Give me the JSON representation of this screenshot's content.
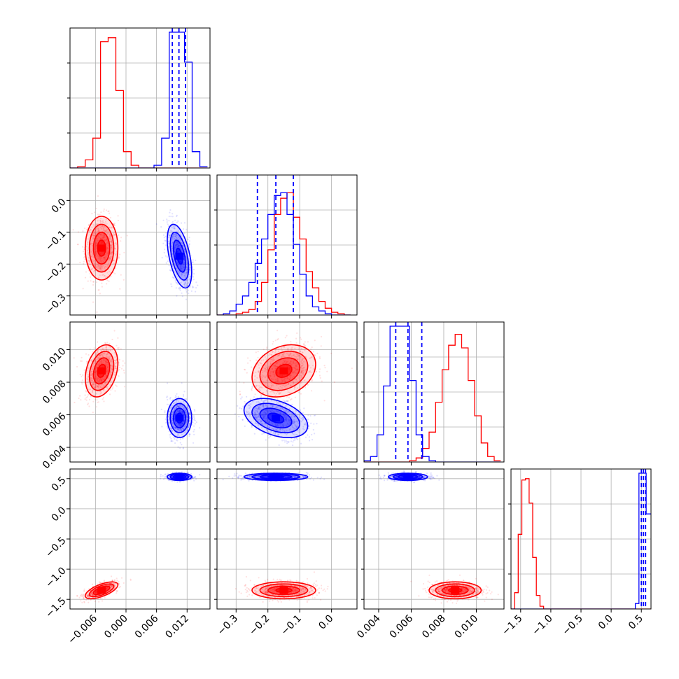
{
  "colors": {
    "series_red": "#ff0000",
    "series_blue": "#0000ff",
    "grid": "#b0b0b0",
    "frame": "#000000"
  },
  "chart_data": {
    "type": "corner",
    "grid": true,
    "parameters": [
      {
        "range": [
          -0.011,
          0.0165
        ],
        "ticks": [
          -0.006,
          0.0,
          0.006,
          0.012
        ],
        "tick_labels": [
          "−0.006",
          "0.000",
          "0.006",
          "0.012"
        ]
      },
      {
        "range": [
          -0.36,
          0.08
        ],
        "ticks": [
          -0.3,
          -0.2,
          -0.1,
          0.0
        ],
        "tick_labels": [
          "−0.3",
          "−0.2",
          "−0.1",
          "0.0"
        ]
      },
      {
        "range": [
          0.0031,
          0.0117
        ],
        "ticks": [
          0.004,
          0.006,
          0.008,
          0.01
        ],
        "tick_labels": [
          "0.004",
          "0.006",
          "0.008",
          "0.010"
        ]
      },
      {
        "range": [
          -1.66,
          0.66
        ],
        "ticks": [
          -1.5,
          -1.0,
          -0.5,
          0.0,
          0.5
        ],
        "tick_labels": [
          "−1.5",
          "−1.0",
          "−0.5",
          "0.0",
          "0.5"
        ]
      }
    ],
    "series": [
      {
        "color": "#ff0000",
        "mean": [
          -0.0048,
          -0.15,
          0.0087,
          -1.35
        ],
        "sd": [
          0.0016,
          0.05,
          0.0008,
          0.07
        ],
        "corr": [
          [
            0,
            1,
            0.0
          ],
          [
            0,
            2,
            0.3
          ],
          [
            0,
            3,
            0.65
          ],
          [
            1,
            2,
            0.25
          ],
          [
            1,
            3,
            0.0
          ],
          [
            2,
            3,
            0.0
          ]
        ]
      },
      {
        "color": "#0000ff",
        "mean": [
          0.0105,
          -0.175,
          0.0058,
          0.53
        ],
        "sd": [
          0.0012,
          0.05,
          0.0006,
          0.03
        ],
        "corr": [
          [
            0,
            1,
            -0.5
          ],
          [
            0,
            2,
            0.0
          ],
          [
            0,
            3,
            0.0
          ],
          [
            1,
            2,
            -0.4
          ],
          [
            1,
            3,
            0.0
          ],
          [
            2,
            3,
            0.0
          ]
        ]
      }
    ],
    "histograms": [
      {
        "bins": [
          -0.011,
          -0.0095,
          -0.008,
          -0.0065,
          -0.005,
          -0.0035,
          -0.002,
          -0.0005,
          0.001,
          0.0025,
          0.004,
          0.0055,
          0.007,
          0.0085,
          0.01,
          0.0115,
          0.013,
          0.0145,
          0.016
        ],
        "red": [
          0,
          1,
          6,
          22,
          93,
          96,
          57,
          12,
          2,
          0,
          0,
          0,
          0,
          0,
          0,
          0,
          0,
          0
        ],
        "blue": [
          0,
          0,
          0,
          0,
          0,
          0,
          0,
          0,
          0,
          0,
          0,
          2,
          22,
          100,
          100,
          78,
          12,
          1
        ]
      },
      {
        "bins": [
          -0.36,
          -0.34,
          -0.32,
          -0.3,
          -0.28,
          -0.26,
          -0.24,
          -0.22,
          -0.2,
          -0.18,
          -0.16,
          -0.14,
          -0.12,
          -0.1,
          -0.08,
          -0.06,
          -0.04,
          -0.02,
          0.0,
          0.02,
          0.04,
          0.06
        ],
        "red": [
          0,
          0,
          0,
          1,
          2,
          4,
          10,
          24,
          48,
          74,
          86,
          90,
          72,
          56,
          32,
          20,
          10,
          5,
          2,
          1,
          0
        ],
        "blue": [
          0,
          1,
          3,
          8,
          14,
          24,
          38,
          56,
          74,
          88,
          90,
          74,
          52,
          30,
          14,
          6,
          3,
          1,
          0,
          0,
          0
        ]
      },
      {
        "bins": [
          0.0031,
          0.0035,
          0.0039,
          0.0043,
          0.0047,
          0.0051,
          0.0055,
          0.0059,
          0.0063,
          0.0067,
          0.0071,
          0.0075,
          0.0079,
          0.0083,
          0.0087,
          0.0091,
          0.0095,
          0.0099,
          0.0103,
          0.0107,
          0.0111,
          0.0115
        ],
        "red": [
          0,
          0,
          0,
          0,
          0,
          0,
          0,
          1,
          3,
          10,
          22,
          44,
          68,
          86,
          94,
          84,
          60,
          34,
          14,
          4,
          1
        ],
        "blue": [
          1,
          4,
          20,
          56,
          100,
          100,
          100,
          60,
          20,
          4,
          1,
          0,
          0,
          0,
          0,
          0,
          0,
          0,
          0,
          0,
          0
        ]
      },
      {
        "bins": [
          -1.66,
          -1.6,
          -1.54,
          -1.48,
          -1.42,
          -1.36,
          -1.3,
          -1.24,
          -1.18,
          -1.12,
          -1.06,
          -1.0,
          -0.4,
          0.0,
          0.4,
          0.46,
          0.52,
          0.58,
          0.66
        ],
        "red": [
          0,
          12,
          55,
          95,
          96,
          78,
          38,
          10,
          2,
          0,
          0,
          0,
          0,
          0,
          0,
          0,
          0,
          0
        ],
        "blue": [
          0,
          0,
          0,
          0,
          0,
          0,
          0,
          0,
          0,
          0,
          0,
          0,
          0,
          0,
          4,
          100,
          100,
          70
        ]
      }
    ],
    "quantiles_blue": [
      [
        0.0091,
        0.0104,
        0.0117
      ],
      [
        -0.233,
        -0.175,
        -0.12
      ],
      [
        0.00505,
        0.0058,
        0.00665
      ],
      [
        0.5,
        0.535,
        0.57
      ]
    ]
  }
}
